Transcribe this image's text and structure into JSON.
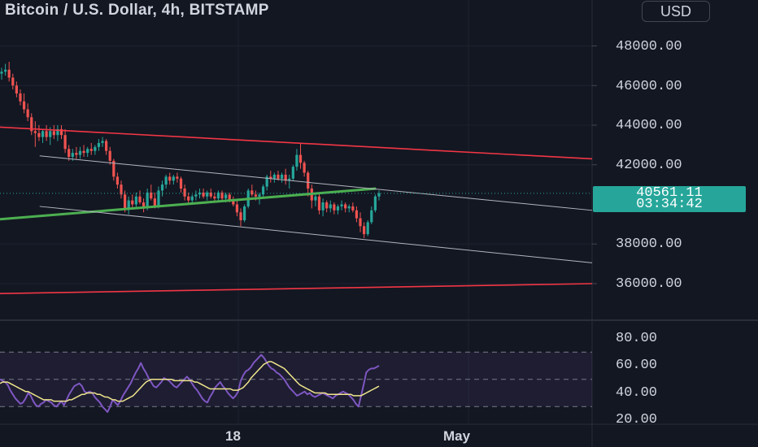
{
  "header": {
    "title": "Bitcoin / U.S. Dollar, 4h, BITSTAMP",
    "currency_button": "USD"
  },
  "price_label": {
    "price": "40561.11",
    "countdown": "03:34:42"
  },
  "price_axis": [
    "48000.00",
    "46000.00",
    "44000.00",
    "42000.00",
    "38000.00",
    "36000.00"
  ],
  "rsi_axis": [
    "80.00",
    "60.00",
    "40.00",
    "20.00"
  ],
  "time_axis": [
    "18",
    "May"
  ],
  "colors": {
    "background": "#131722",
    "bull": "#26a69a",
    "bear": "#ef5350",
    "channel_red": "#f23645",
    "trend_green": "#4caf50",
    "rsi": "#7e57c2",
    "rsi_ma": "#f0e68c",
    "grid": "#1e2230"
  },
  "chart_data": [
    {
      "type": "candlestick",
      "title": "Bitcoin / U.S. Dollar, 4h, BITSTAMP",
      "ylim": [
        35000,
        50000
      ],
      "y_ticks": [
        36000,
        38000,
        42000,
        44000,
        46000,
        48000
      ],
      "x_ticks": [
        "18",
        "May"
      ],
      "last_price": 40561.11,
      "candles": [
        [
          46600,
          46900,
          46300,
          46700
        ],
        [
          46700,
          47100,
          46500,
          46800
        ],
        [
          46800,
          47200,
          46200,
          46400
        ],
        [
          46400,
          46600,
          45800,
          46000
        ],
        [
          46000,
          46200,
          45400,
          45600
        ],
        [
          45600,
          45800,
          45000,
          45200
        ],
        [
          45200,
          45600,
          44600,
          44800
        ],
        [
          44800,
          45100,
          44200,
          44400
        ],
        [
          44400,
          44600,
          43500,
          43700
        ],
        [
          43700,
          44200,
          42900,
          43600
        ],
        [
          43600,
          44000,
          43200,
          43400
        ],
        [
          43400,
          43800,
          43100,
          43700
        ],
        [
          43700,
          44000,
          43200,
          43400
        ],
        [
          43400,
          43900,
          43000,
          43700
        ],
        [
          43700,
          44000,
          43300,
          43500
        ],
        [
          43500,
          44000,
          43200,
          43800
        ],
        [
          43800,
          44000,
          43300,
          43500
        ],
        [
          43500,
          43800,
          42600,
          42800
        ],
        [
          42800,
          43000,
          42200,
          42400
        ],
        [
          42400,
          42800,
          42200,
          42600
        ],
        [
          42600,
          42900,
          42300,
          42500
        ],
        [
          42500,
          42900,
          42300,
          42700
        ],
        [
          42700,
          43000,
          42400,
          42600
        ],
        [
          42600,
          42900,
          42400,
          42800
        ],
        [
          42800,
          43100,
          42500,
          42700
        ],
        [
          42700,
          43000,
          42500,
          42900
        ],
        [
          42900,
          43300,
          42700,
          43100
        ],
        [
          43100,
          43400,
          42900,
          43200
        ],
        [
          43200,
          43300,
          42500,
          42700
        ],
        [
          42700,
          42900,
          42000,
          42200
        ],
        [
          42200,
          42300,
          41200,
          41400
        ],
        [
          41400,
          41600,
          40800,
          41000
        ],
        [
          41000,
          41200,
          40300,
          40500
        ],
        [
          40500,
          40700,
          39600,
          39800
        ],
        [
          39800,
          40400,
          39500,
          40200
        ],
        [
          40200,
          40500,
          39800,
          40000
        ],
        [
          40000,
          40600,
          39800,
          40400
        ],
        [
          40400,
          40700,
          40000,
          40100
        ],
        [
          40100,
          40300,
          39600,
          39800
        ],
        [
          39800,
          40800,
          39700,
          40600
        ],
        [
          40600,
          41000,
          40200,
          40300
        ],
        [
          40300,
          40600,
          39800,
          39900
        ],
        [
          39900,
          40900,
          39800,
          40700
        ],
        [
          40700,
          41200,
          40400,
          41000
        ],
        [
          41000,
          41500,
          40800,
          41400
        ],
        [
          41400,
          41600,
          41000,
          41200
        ],
        [
          41200,
          41500,
          41000,
          41400
        ],
        [
          41400,
          41600,
          41100,
          41300
        ],
        [
          41300,
          41400,
          40600,
          40800
        ],
        [
          40800,
          41000,
          40200,
          40400
        ],
        [
          40400,
          40600,
          40000,
          40200
        ],
        [
          40200,
          40500,
          40000,
          40400
        ],
        [
          40400,
          40700,
          40200,
          40500
        ],
        [
          40500,
          40800,
          40300,
          40600
        ],
        [
          40600,
          40800,
          40300,
          40400
        ],
        [
          40400,
          40700,
          40200,
          40600
        ],
        [
          40600,
          40800,
          40300,
          40400
        ],
        [
          40400,
          40600,
          40100,
          40300
        ],
        [
          40300,
          40700,
          40100,
          40600
        ],
        [
          40600,
          40700,
          40200,
          40300
        ],
        [
          40300,
          40600,
          40100,
          40500
        ],
        [
          40500,
          40600,
          40100,
          40200
        ],
        [
          40200,
          40400,
          39900,
          40000
        ],
        [
          40000,
          40200,
          39400,
          39600
        ],
        [
          39600,
          39800,
          38900,
          39200
        ],
        [
          39200,
          40000,
          39100,
          39900
        ],
        [
          39900,
          40800,
          39800,
          40700
        ],
        [
          40700,
          41000,
          40400,
          40500
        ],
        [
          40500,
          40700,
          40200,
          40400
        ],
        [
          40400,
          40600,
          40000,
          40500
        ],
        [
          40500,
          41000,
          40300,
          40900
        ],
        [
          40900,
          41500,
          40700,
          41400
        ],
        [
          41400,
          41700,
          41100,
          41300
        ],
        [
          41300,
          41600,
          41100,
          41500
        ],
        [
          41500,
          41700,
          41200,
          41300
        ],
        [
          41300,
          41600,
          41100,
          41500
        ],
        [
          41500,
          41800,
          41000,
          41200
        ],
        [
          41200,
          41500,
          40800,
          41300
        ],
        [
          41300,
          42000,
          41200,
          41900
        ],
        [
          41900,
          42800,
          41700,
          42500
        ],
        [
          42500,
          43100,
          41800,
          42100
        ],
        [
          42100,
          42200,
          41400,
          41600
        ],
        [
          41600,
          41700,
          40400,
          40800
        ],
        [
          40800,
          41000,
          39800,
          40200
        ],
        [
          40200,
          40600,
          39900,
          40400
        ],
        [
          40400,
          40600,
          39500,
          39700
        ],
        [
          39700,
          40300,
          39400,
          40100
        ],
        [
          40100,
          40200,
          39600,
          39800
        ],
        [
          39800,
          40200,
          39600,
          40000
        ],
        [
          40000,
          40100,
          39500,
          39700
        ],
        [
          39700,
          40000,
          39500,
          39900
        ],
        [
          39900,
          40200,
          39700,
          40000
        ],
        [
          40000,
          40100,
          39600,
          39800
        ],
        [
          39800,
          40000,
          39600,
          39900
        ],
        [
          39900,
          40100,
          39600,
          39700
        ],
        [
          39700,
          39900,
          39100,
          39300
        ],
        [
          39300,
          39600,
          38600,
          38900
        ],
        [
          38900,
          39100,
          38300,
          38500
        ],
        [
          38500,
          39200,
          38400,
          39100
        ],
        [
          39100,
          39900,
          39000,
          39700
        ],
        [
          39700,
          40500,
          39600,
          40400
        ],
        [
          40400,
          40700,
          40200,
          40561
        ]
      ],
      "lines": [
        {
          "name": "",
          "color": "#f23645",
          "points": [
            [
              0,
              43900
            ],
            [
              1,
              42300
            ]
          ]
        },
        {
          "name": "",
          "color": "#f23645",
          "points": [
            [
              0,
              35500
            ],
            [
              1,
              36000
            ]
          ]
        },
        {
          "name": "",
          "color": "#4caf50",
          "points": [
            [
              0,
              39250
            ],
            [
              0.635,
              40800
            ]
          ]
        },
        {
          "name": "",
          "color": "#b2b5be",
          "points": [
            [
              0.067,
              42450
            ],
            [
              1,
              39700
            ]
          ]
        },
        {
          "name": "",
          "color": "#b2b5be",
          "points": [
            [
              0.067,
              39900
            ],
            [
              1,
              37050
            ]
          ]
        }
      ]
    },
    {
      "type": "line",
      "ylim": [
        20,
        80
      ],
      "y_ticks": [
        20,
        40,
        60,
        80
      ],
      "bands": [
        30,
        50,
        70
      ],
      "series": [
        {
          "name": "",
          "color": "#7e57c2",
          "values": [
            50,
            49,
            48,
            46,
            42,
            39,
            36,
            34,
            32,
            33,
            36,
            40,
            38,
            34,
            31,
            30,
            32,
            33,
            35,
            34,
            33,
            31,
            30,
            32,
            34,
            31,
            35,
            39,
            42,
            45,
            46,
            47,
            45,
            41,
            40,
            41,
            40,
            37,
            35,
            33,
            30,
            28,
            26,
            30,
            35,
            33,
            31,
            34,
            38,
            41,
            44,
            47,
            51,
            55,
            58,
            62,
            58,
            55,
            51,
            48,
            45,
            44,
            46,
            48,
            51,
            50,
            49,
            47,
            45,
            44,
            46,
            48,
            50,
            52,
            50,
            47,
            44,
            42,
            39,
            36,
            34,
            33,
            37,
            40,
            44,
            46,
            48,
            45,
            43,
            40,
            38,
            36,
            38,
            41,
            49,
            53,
            56,
            57,
            59,
            62,
            64,
            66,
            68,
            66,
            63,
            60,
            58,
            57,
            55,
            54,
            52,
            50,
            47,
            44,
            42,
            40,
            38,
            39,
            40,
            41,
            39,
            40,
            38,
            37,
            38,
            39,
            40,
            39,
            38,
            37,
            36,
            38,
            39,
            40,
            41,
            40,
            39,
            37,
            35,
            32,
            30,
            38,
            46,
            55,
            57,
            58,
            58,
            59,
            60
          ]
        },
        {
          "name": "",
          "color": "#f0e68c",
          "values": [
            47,
            48,
            48,
            48,
            47,
            46,
            45,
            44,
            43,
            42,
            41,
            41,
            40,
            39,
            38,
            37,
            36,
            35,
            35,
            35,
            35,
            34,
            34,
            34,
            34,
            34,
            34,
            35,
            35,
            36,
            37,
            38,
            39,
            39,
            40,
            40,
            40,
            40,
            39,
            39,
            38,
            37,
            37,
            36,
            35,
            35,
            34,
            34,
            34,
            35,
            36,
            37,
            38,
            40,
            42,
            44,
            46,
            48,
            49,
            50,
            50,
            50,
            50,
            50,
            50,
            50,
            50,
            50,
            49,
            49,
            49,
            49,
            49,
            49,
            49,
            49,
            48,
            48,
            47,
            46,
            45,
            44,
            43,
            43,
            43,
            43,
            43,
            43,
            43,
            43,
            43,
            42,
            42,
            42,
            43,
            44,
            46,
            48,
            51,
            53,
            55,
            57,
            59,
            61,
            62,
            63,
            63,
            62,
            61,
            60,
            59,
            58,
            56,
            54,
            52,
            50,
            48,
            46,
            45,
            44,
            43,
            42,
            41,
            40,
            40,
            40,
            40,
            40,
            39,
            39,
            39,
            39,
            39,
            39,
            39,
            39,
            39,
            39,
            38,
            38,
            38,
            38,
            39,
            40,
            41,
            42,
            43,
            44,
            45
          ]
        }
      ]
    }
  ]
}
